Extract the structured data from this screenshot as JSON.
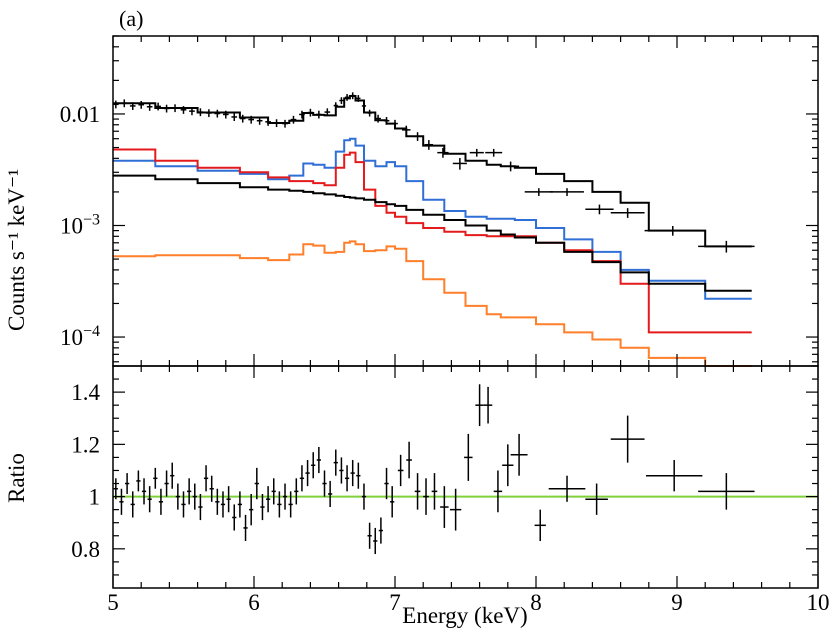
{
  "chart_data": {
    "type": "line",
    "panel_label": "(a)",
    "xlabel": "Energy (keV)",
    "xlim": [
      5,
      10
    ],
    "x_ticks": [
      5,
      6,
      7,
      8,
      9,
      10
    ],
    "x_tick_labels": [
      "5",
      "6",
      "7",
      "8",
      "9",
      "10"
    ],
    "colors": {
      "data": "#000000",
      "total": "#000000",
      "blue": "#2f6fd6",
      "red": "#e41a1c",
      "black_component": "#000000",
      "orange": "#ff7f2a",
      "unity": "#7fd13b"
    },
    "top_panel": {
      "ylabel": "Counts s⁻¹ keV⁻¹",
      "yscale": "log",
      "ylim": [
        5.5e-05,
        0.05
      ],
      "y_ticks": [
        0.0001,
        0.001,
        0.01
      ],
      "y_tick_labels": [
        {
          "base": "10",
          "exp": "−4"
        },
        {
          "base": "10",
          "exp": "−3"
        },
        {
          "base": "0.01",
          "exp": ""
        }
      ],
      "model_x": [
        5.0,
        5.3,
        5.6,
        5.9,
        6.1,
        6.25,
        6.35,
        6.42,
        6.5,
        6.58,
        6.64,
        6.68,
        6.72,
        6.78,
        6.86,
        6.94,
        7.0,
        7.08,
        7.2,
        7.35,
        7.5,
        7.65,
        7.75,
        7.85,
        8.0,
        8.2,
        8.4,
        8.6,
        8.8,
        9.0,
        9.2,
        9.53
      ],
      "series": [
        {
          "name": "total",
          "color": "#000000",
          "values": [
            0.0125,
            0.0113,
            0.0103,
            0.0093,
            0.0083,
            0.0087,
            0.0102,
            0.0098,
            0.0097,
            0.0116,
            0.0138,
            0.0145,
            0.0132,
            0.0103,
            0.0088,
            0.0082,
            0.0074,
            0.0063,
            0.0052,
            0.0044,
            0.0038,
            0.0035,
            0.0034,
            0.0033,
            0.0029,
            0.0025,
            0.002,
            0.0016,
            0.0009,
            0.0009,
            0.00065,
            0.00065
          ]
        },
        {
          "name": "blue-component",
          "color": "#2f6fd6",
          "values": [
            0.0038,
            0.0034,
            0.0031,
            0.0029,
            0.0026,
            0.0028,
            0.0036,
            0.0035,
            0.0033,
            0.0046,
            0.0058,
            0.006,
            0.0052,
            0.0038,
            0.0034,
            0.0037,
            0.0034,
            0.0025,
            0.0017,
            0.00135,
            0.0012,
            0.00115,
            0.00115,
            0.00112,
            0.00095,
            0.00075,
            0.00058,
            0.0004,
            0.00032,
            0.00032,
            0.00022,
            0.00022
          ]
        },
        {
          "name": "red-component",
          "color": "#e41a1c",
          "values": [
            0.0048,
            0.0038,
            0.0033,
            0.003,
            0.0027,
            0.0025,
            0.0025,
            0.0024,
            0.0023,
            0.0033,
            0.0043,
            0.0045,
            0.0037,
            0.0021,
            0.0015,
            0.0013,
            0.0012,
            0.00105,
            0.00095,
            0.00088,
            0.00082,
            0.0008,
            0.0008,
            0.0008,
            0.0007,
            0.0006,
            0.00048,
            0.0003,
            0.00011,
            0.00011,
            0.00011,
            0.00011
          ]
        },
        {
          "name": "black-component",
          "color": "#000000",
          "values": [
            0.0028,
            0.0026,
            0.0024,
            0.0022,
            0.0021,
            0.00205,
            0.002,
            0.00195,
            0.0019,
            0.00185,
            0.0018,
            0.00178,
            0.00175,
            0.0017,
            0.00162,
            0.00155,
            0.0015,
            0.00138,
            0.00125,
            0.00112,
            0.001,
            0.0009,
            0.00083,
            0.00078,
            0.0007,
            0.00058,
            0.00047,
            0.00038,
            0.0003,
            0.0003,
            0.00026,
            0.00026
          ]
        },
        {
          "name": "orange-component",
          "color": "#ff7f2a",
          "values": [
            0.00053,
            0.00054,
            0.00054,
            0.00051,
            0.00049,
            0.00055,
            0.00068,
            0.00066,
            0.00057,
            0.00058,
            0.0007,
            0.00072,
            0.00068,
            0.00059,
            0.0006,
            0.00065,
            0.00062,
            0.00048,
            0.00033,
            0.00025,
            0.00019,
            0.00016,
            0.00015,
            0.00015,
            0.00013,
            0.00011,
            9.5e-05,
            8e-05,
            6.5e-05,
            6.5e-05,
            5.5e-05,
            5.5e-05
          ]
        }
      ],
      "data_points": {
        "x": [
          5.02,
          5.08,
          5.14,
          5.2,
          5.26,
          5.32,
          5.38,
          5.44,
          5.5,
          5.56,
          5.62,
          5.68,
          5.74,
          5.8,
          5.86,
          5.92,
          5.98,
          6.04,
          6.1,
          6.16,
          6.22,
          6.28,
          6.34,
          6.4,
          6.46,
          6.52,
          6.58,
          6.62,
          6.66,
          6.7,
          6.74,
          6.78,
          6.82,
          6.88,
          6.94,
          7.0,
          7.08,
          7.16,
          7.24,
          7.34,
          7.46,
          7.58,
          7.7,
          7.82,
          8.02,
          8.22,
          8.45,
          8.65,
          8.97,
          9.35
        ],
        "y": [
          0.0122,
          0.0125,
          0.0118,
          0.0121,
          0.0116,
          0.0117,
          0.0112,
          0.0113,
          0.0109,
          0.0106,
          0.0104,
          0.0102,
          0.0101,
          0.0099,
          0.0094,
          0.0091,
          0.0089,
          0.0087,
          0.0085,
          0.0083,
          0.0082,
          0.0089,
          0.0099,
          0.0103,
          0.0099,
          0.0104,
          0.0119,
          0.0132,
          0.0141,
          0.0146,
          0.0138,
          0.0118,
          0.0102,
          0.0091,
          0.0087,
          0.0082,
          0.0072,
          0.0063,
          0.0053,
          0.0045,
          0.0036,
          0.0045,
          0.0045,
          0.0034,
          0.002,
          0.002,
          0.0014,
          0.0013,
          0.0009,
          0.00065
        ],
        "xerr": [
          0.02,
          0.02,
          0.02,
          0.02,
          0.02,
          0.02,
          0.02,
          0.02,
          0.02,
          0.02,
          0.02,
          0.02,
          0.02,
          0.02,
          0.02,
          0.02,
          0.02,
          0.02,
          0.02,
          0.02,
          0.02,
          0.02,
          0.02,
          0.02,
          0.02,
          0.02,
          0.015,
          0.015,
          0.015,
          0.015,
          0.015,
          0.015,
          0.015,
          0.02,
          0.02,
          0.02,
          0.03,
          0.03,
          0.03,
          0.04,
          0.05,
          0.05,
          0.06,
          0.06,
          0.1,
          0.12,
          0.1,
          0.12,
          0.2,
          0.2
        ],
        "yerr_frac": [
          0.08,
          0.08,
          0.08,
          0.08,
          0.08,
          0.08,
          0.08,
          0.08,
          0.08,
          0.08,
          0.08,
          0.08,
          0.08,
          0.08,
          0.08,
          0.08,
          0.08,
          0.08,
          0.08,
          0.08,
          0.08,
          0.08,
          0.08,
          0.08,
          0.08,
          0.08,
          0.07,
          0.07,
          0.07,
          0.07,
          0.07,
          0.07,
          0.07,
          0.08,
          0.08,
          0.08,
          0.09,
          0.09,
          0.1,
          0.1,
          0.12,
          0.08,
          0.08,
          0.1,
          0.08,
          0.08,
          0.1,
          0.1,
          0.1,
          0.12
        ]
      }
    },
    "bottom_panel": {
      "ylabel": "Ratio",
      "ylim": [
        0.65,
        1.5
      ],
      "y_ticks": [
        0.8,
        1.0,
        1.2,
        1.4
      ],
      "y_tick_labels": [
        "0.8",
        "1",
        "1.2",
        "1.4"
      ],
      "reference_line": 1.0,
      "data_points": {
        "x": [
          5.02,
          5.06,
          5.1,
          5.14,
          5.18,
          5.22,
          5.26,
          5.3,
          5.34,
          5.38,
          5.42,
          5.46,
          5.5,
          5.54,
          5.58,
          5.62,
          5.66,
          5.7,
          5.74,
          5.78,
          5.82,
          5.86,
          5.9,
          5.94,
          5.98,
          6.02,
          6.06,
          6.1,
          6.14,
          6.18,
          6.22,
          6.26,
          6.3,
          6.34,
          6.38,
          6.42,
          6.46,
          6.5,
          6.54,
          6.58,
          6.62,
          6.66,
          6.7,
          6.74,
          6.78,
          6.82,
          6.86,
          6.9,
          6.94,
          6.98,
          7.04,
          7.1,
          7.16,
          7.22,
          7.28,
          7.35,
          7.43,
          7.52,
          7.6,
          7.66,
          7.73,
          7.8,
          7.88,
          8.03,
          8.22,
          8.43,
          8.65,
          8.98,
          9.35
        ],
        "y": [
          1.03,
          0.98,
          1.05,
          0.97,
          1.06,
          1.02,
          0.99,
          1.07,
          0.98,
          1.05,
          1.08,
          1.0,
          0.97,
          1.02,
          1.0,
          0.96,
          1.07,
          1.03,
          0.98,
          0.97,
          0.99,
          0.92,
          0.97,
          0.88,
          0.95,
          1.05,
          0.96,
          0.99,
          1.02,
          0.97,
          1.0,
          0.97,
          1.02,
          1.07,
          1.09,
          1.12,
          1.14,
          1.05,
          1.01,
          1.13,
          1.1,
          1.07,
          1.09,
          1.08,
          1.0,
          0.85,
          0.83,
          0.87,
          1.05,
          0.98,
          1.1,
          1.14,
          1.02,
          1.0,
          1.02,
          0.96,
          0.95,
          1.15,
          1.35,
          1.35,
          1.02,
          1.12,
          1.16,
          0.89,
          1.03,
          0.99,
          1.22,
          1.08,
          1.02
        ],
        "xerr": [
          0.015,
          0.015,
          0.015,
          0.015,
          0.015,
          0.015,
          0.015,
          0.015,
          0.015,
          0.015,
          0.015,
          0.015,
          0.015,
          0.015,
          0.015,
          0.015,
          0.015,
          0.015,
          0.015,
          0.015,
          0.015,
          0.015,
          0.015,
          0.015,
          0.015,
          0.015,
          0.015,
          0.015,
          0.015,
          0.015,
          0.015,
          0.015,
          0.015,
          0.015,
          0.015,
          0.015,
          0.015,
          0.015,
          0.015,
          0.015,
          0.015,
          0.015,
          0.015,
          0.015,
          0.015,
          0.015,
          0.015,
          0.015,
          0.015,
          0.015,
          0.02,
          0.02,
          0.02,
          0.02,
          0.02,
          0.03,
          0.04,
          0.03,
          0.03,
          0.03,
          0.03,
          0.04,
          0.06,
          0.04,
          0.13,
          0.08,
          0.12,
          0.2,
          0.2
        ],
        "yerr": [
          0.04,
          0.05,
          0.04,
          0.05,
          0.04,
          0.05,
          0.05,
          0.04,
          0.05,
          0.05,
          0.05,
          0.05,
          0.05,
          0.05,
          0.05,
          0.05,
          0.05,
          0.05,
          0.05,
          0.05,
          0.05,
          0.05,
          0.05,
          0.05,
          0.06,
          0.06,
          0.05,
          0.05,
          0.05,
          0.05,
          0.05,
          0.05,
          0.05,
          0.05,
          0.05,
          0.05,
          0.05,
          0.05,
          0.05,
          0.05,
          0.05,
          0.05,
          0.05,
          0.05,
          0.05,
          0.05,
          0.05,
          0.05,
          0.06,
          0.06,
          0.06,
          0.07,
          0.07,
          0.07,
          0.07,
          0.08,
          0.08,
          0.09,
          0.08,
          0.07,
          0.08,
          0.08,
          0.08,
          0.06,
          0.05,
          0.06,
          0.09,
          0.06,
          0.07
        ]
      }
    }
  }
}
